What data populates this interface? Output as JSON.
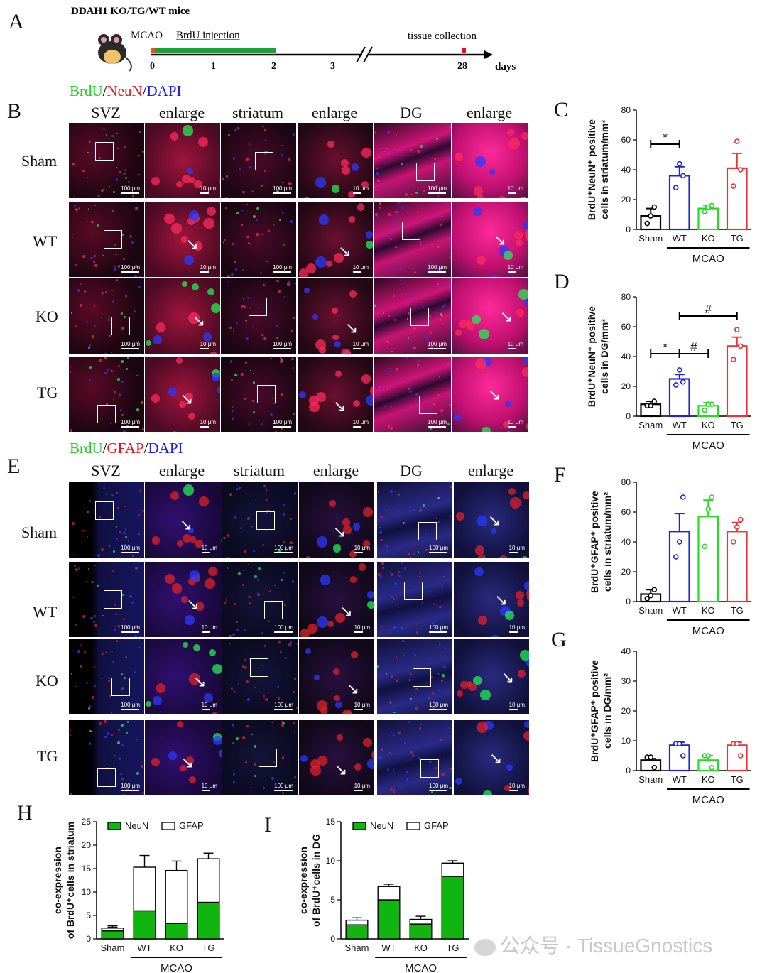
{
  "panel_A": {
    "label": "A",
    "title": "DDAH1 KO/TG/WT mice",
    "mcao": "MCAO",
    "brdu": "BrdU injection",
    "tissue": "tissue collection",
    "ticks": [
      "0",
      "1",
      "2",
      "3",
      "28"
    ],
    "days": "days"
  },
  "panel_B": {
    "label": "B",
    "stain": {
      "brdu": "BrdU",
      "sep1": "/",
      "marker": "NeuN",
      "sep2": "/",
      "dapi": "DAPI"
    },
    "columns": [
      "SVZ",
      "enlarge",
      "striatum",
      "enlarge",
      "DG",
      "enlarge"
    ],
    "rows": [
      "Sham",
      "WT",
      "KO",
      "TG"
    ]
  },
  "panel_E": {
    "label": "E",
    "stain": {
      "brdu": "BrdU",
      "sep1": "/",
      "marker": "GFAP",
      "sep2": "/",
      "dapi": "DAPI"
    },
    "columns": [
      "SVZ",
      "enlarge",
      "striatum",
      "enlarge",
      "DG",
      "enlarge"
    ],
    "rows": [
      "Sham",
      "WT",
      "KO",
      "TG"
    ]
  },
  "scalebars": {
    "wide": "100 μm",
    "enlarge": "10 μm"
  },
  "colors": {
    "sham": "#000000",
    "wt": "#1f1fe6",
    "ko": "#22dd22",
    "tg": "#ee3333",
    "brdu": "#22cc22",
    "neun": "#e8141e",
    "gfap": "#e8141e",
    "dapi": "#1a1aff",
    "bar_green": "#10b510"
  },
  "chart_data": [
    {
      "id": "C",
      "type": "bar",
      "title": "",
      "categories": [
        "Sham",
        "WT",
        "KO",
        "TG"
      ],
      "group_label": "MCAO",
      "ylabel": "BrdU⁺NeuN⁺ positive cells in striatum/mm²",
      "ylim": [
        0,
        80
      ],
      "yticks": [
        0,
        20,
        40,
        60,
        80
      ],
      "values": [
        9,
        36,
        14,
        41
      ],
      "sem": [
        5,
        6,
        2,
        10
      ],
      "points": [
        [
          4,
          15,
          9
        ],
        [
          28,
          36,
          44
        ],
        [
          12,
          16,
          15
        ],
        [
          29,
          40,
          59
        ]
      ],
      "significance": [
        {
          "from": "Sham",
          "to": "WT",
          "mark": "*"
        }
      ]
    },
    {
      "id": "D",
      "type": "bar",
      "title": "",
      "categories": [
        "Sham",
        "WT",
        "KO",
        "TG"
      ],
      "group_label": "MCAO",
      "ylabel": "BrdU⁺NeuN⁺ positive cells in DG/mm²",
      "ylim": [
        0,
        80
      ],
      "yticks": [
        0,
        20,
        40,
        60,
        80
      ],
      "values": [
        8,
        25,
        7,
        47
      ],
      "sem": [
        2,
        3,
        2,
        6
      ],
      "points": [
        [
          7,
          10,
          7
        ],
        [
          21,
          23,
          31
        ],
        [
          4,
          8,
          8
        ],
        [
          38,
          47,
          58
        ]
      ],
      "significance": [
        {
          "from": "Sham",
          "to": "WT",
          "mark": "*"
        },
        {
          "from": "WT",
          "to": "KO",
          "mark": "#"
        },
        {
          "from": "WT",
          "to": "TG",
          "mark": "#"
        }
      ]
    },
    {
      "id": "F",
      "type": "bar",
      "title": "",
      "categories": [
        "Sham",
        "WT",
        "KO",
        "TG"
      ],
      "group_label": "MCAO",
      "ylabel": "BrdU⁺GFAP⁺ positive cells in striatum/mm²",
      "ylim": [
        0,
        80
      ],
      "yticks": [
        0,
        20,
        40,
        60,
        80
      ],
      "values": [
        5,
        47,
        57,
        47
      ],
      "sem": [
        3,
        12,
        11,
        6
      ],
      "points": [
        [
          2,
          8,
          4
        ],
        [
          30,
          70,
          40
        ],
        [
          37,
          70,
          62
        ],
        [
          40,
          55,
          50
        ]
      ],
      "significance": []
    },
    {
      "id": "G",
      "type": "bar",
      "title": "",
      "categories": [
        "Sham",
        "WT",
        "KO",
        "TG"
      ],
      "group_label": "MCAO",
      "ylabel": "BrdU⁺GFAP⁺ positive cells in DG/mm²",
      "ylim": [
        0,
        40
      ],
      "yticks": [
        0,
        10,
        20,
        30,
        40
      ],
      "values": [
        3.5,
        8.5,
        3.5,
        8.5
      ],
      "sem": [
        0.5,
        1,
        1.5,
        1
      ],
      "points": [
        [
          4.5,
          1,
          4.5
        ],
        [
          9,
          5,
          9
        ],
        [
          5,
          1,
          5
        ],
        [
          9,
          5,
          9
        ]
      ],
      "significance": []
    },
    {
      "id": "H",
      "type": "bar",
      "stacked": true,
      "title": "",
      "categories": [
        "Sham",
        "WT",
        "KO",
        "TG"
      ],
      "group_label": "MCAO",
      "ylabel": "co-expression of BrdU⁺cells in striatum",
      "ylim": [
        0,
        25
      ],
      "yticks": [
        0,
        5,
        10,
        15,
        20,
        25
      ],
      "series": [
        {
          "name": "NeuN",
          "values": [
            1.7,
            6.0,
            3.3,
            7.8
          ],
          "sem": [
            0.8,
            1.0,
            0.5,
            1.0
          ]
        },
        {
          "name": "GFAP",
          "values": [
            0.6,
            9.3,
            11.3,
            9.3
          ],
          "sem": [
            0.5,
            2.5,
            2.0,
            1.2
          ]
        }
      ]
    },
    {
      "id": "I",
      "type": "bar",
      "stacked": true,
      "title": "",
      "categories": [
        "Sham",
        "WT",
        "KO",
        "TG"
      ],
      "group_label": "MCAO",
      "ylabel": "co-expression of BrdU⁺cells in DG",
      "ylim": [
        0,
        15
      ],
      "yticks": [
        0,
        5,
        10,
        15
      ],
      "series": [
        {
          "name": "NeuN",
          "values": [
            1.8,
            5.0,
            1.9,
            8.0
          ],
          "sem": [
            0.3,
            0.5,
            0.5,
            1.2
          ]
        },
        {
          "name": "GFAP",
          "values": [
            0.6,
            1.7,
            0.6,
            1.7
          ],
          "sem": [
            0.3,
            0.3,
            0.4,
            0.3
          ]
        }
      ]
    }
  ],
  "watermark": "公众号 · TissueGnostics"
}
